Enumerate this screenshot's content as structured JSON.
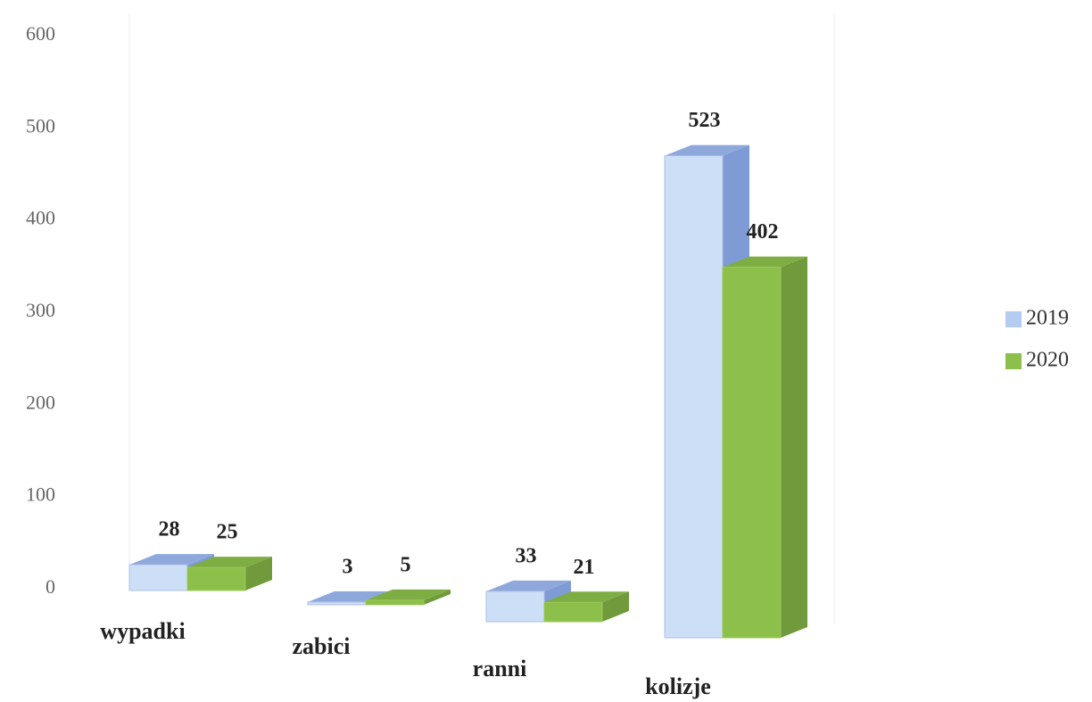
{
  "chart_data": {
    "type": "bar3d",
    "categories": [
      "wypadki",
      "zabici",
      "ranni",
      "kolizje"
    ],
    "series": [
      {
        "name": "2019",
        "color": "#cddff7",
        "values": [
          28,
          3,
          33,
          523
        ]
      },
      {
        "name": "2020",
        "color": "#8cc04a",
        "values": [
          25,
          5,
          21,
          402
        ]
      }
    ],
    "ylim": [
      0,
      600
    ],
    "yticks": [
      0,
      100,
      200,
      300,
      400,
      500,
      600
    ],
    "legend": "right"
  }
}
